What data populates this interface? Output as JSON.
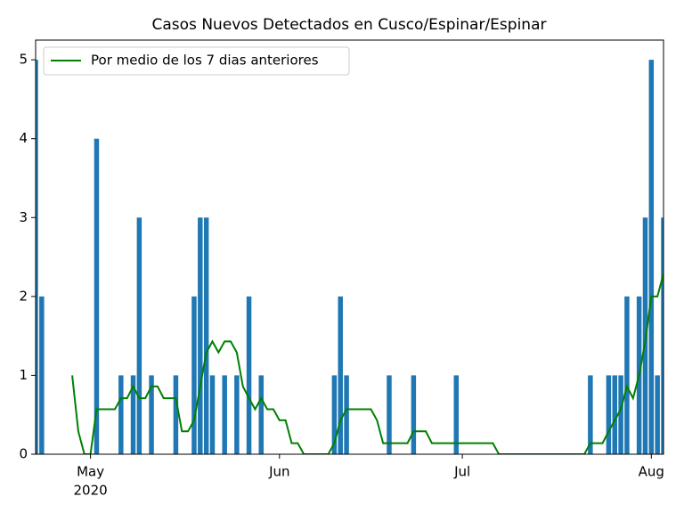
{
  "chart_data": {
    "type": "bar",
    "title": "Casos Nuevos Detectados en Cusco/Espinar/Espinar",
    "categories": [
      null,
      null,
      null,
      null,
      null,
      null,
      null,
      null,
      null,
      "May",
      null,
      null,
      null,
      null,
      null,
      null,
      null,
      null,
      null,
      null,
      null,
      null,
      null,
      null,
      null,
      null,
      null,
      null,
      null,
      null,
      null,
      null,
      null,
      null,
      null,
      null,
      null,
      null,
      null,
      null,
      "Jun",
      null,
      null,
      null,
      null,
      null,
      null,
      null,
      null,
      null,
      null,
      null,
      null,
      null,
      null,
      null,
      null,
      null,
      null,
      null,
      null,
      null,
      null,
      null,
      null,
      null,
      null,
      null,
      null,
      null,
      "Jul",
      null,
      null,
      null,
      null,
      null,
      null,
      null,
      null,
      null,
      null,
      null,
      null,
      null,
      null,
      null,
      null,
      null,
      null,
      null,
      null,
      null,
      null,
      null,
      null,
      null,
      null,
      null,
      null,
      null,
      null,
      "Aug",
      null,
      null
    ],
    "x_year": "2020",
    "series": [
      {
        "type": "bar",
        "color": "#1f77b4",
        "values": [
          5,
          2,
          0,
          0,
          0,
          0,
          0,
          0,
          0,
          0,
          4,
          0,
          0,
          0,
          1,
          0,
          1,
          3,
          0,
          1,
          0,
          0,
          0,
          1,
          0,
          0,
          2,
          3,
          3,
          1,
          0,
          1,
          0,
          1,
          0,
          2,
          0,
          1,
          0,
          0,
          0,
          0,
          0,
          0,
          0,
          0,
          0,
          0,
          0,
          1,
          2,
          1,
          0,
          0,
          0,
          0,
          0,
          0,
          1,
          0,
          0,
          0,
          1,
          0,
          0,
          0,
          0,
          0,
          0,
          1,
          0,
          0,
          0,
          0,
          0,
          0,
          0,
          0,
          0,
          0,
          0,
          0,
          0,
          0,
          0,
          0,
          0,
          0,
          0,
          0,
          0,
          1,
          0,
          0,
          1,
          1,
          1,
          2,
          0,
          2,
          3,
          5,
          1,
          3
        ]
      },
      {
        "type": "line",
        "name": "Por medio de los 7 dias anteriores",
        "color": "#008000",
        "values": [
          null,
          null,
          null,
          null,
          null,
          null,
          1.0,
          0.29,
          0,
          0,
          0.57,
          0.57,
          0.57,
          0.57,
          0.71,
          0.71,
          0.86,
          0.71,
          0.71,
          0.86,
          0.86,
          0.71,
          0.71,
          0.71,
          0.29,
          0.29,
          0.43,
          0.86,
          1.29,
          1.43,
          1.29,
          1.43,
          1.43,
          1.29,
          0.86,
          0.71,
          0.57,
          0.71,
          0.57,
          0.57,
          0.43,
          0.43,
          0.14,
          0.14,
          0,
          0,
          0,
          0,
          0,
          0.14,
          0.43,
          0.57,
          0.57,
          0.57,
          0.57,
          0.57,
          0.43,
          0.14,
          0.14,
          0.14,
          0.14,
          0.14,
          0.29,
          0.29,
          0.29,
          0.14,
          0.14,
          0.14,
          0.14,
          0.14,
          0.14,
          0.14,
          0.14,
          0.14,
          0.14,
          0.14,
          0,
          0,
          0,
          0,
          0,
          0,
          0,
          0,
          0,
          0,
          0,
          0,
          0,
          0,
          0,
          0.14,
          0.14,
          0.14,
          0.29,
          0.43,
          0.57,
          0.86,
          0.71,
          1.0,
          1.43,
          2.0,
          2.0,
          2.29
        ]
      }
    ],
    "ylim": [
      0,
      5.25
    ],
    "yticks": [
      0,
      1,
      2,
      3,
      4,
      5
    ],
    "grid": false,
    "legend": "upper left"
  }
}
